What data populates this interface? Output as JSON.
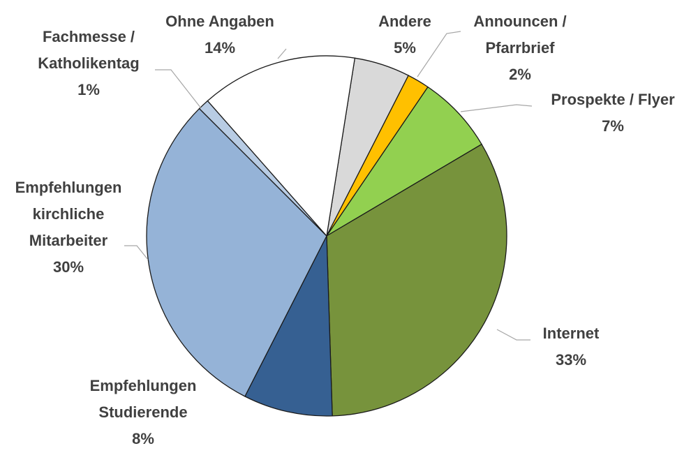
{
  "chart_data": {
    "type": "pie",
    "categories": [
      "Andere",
      "Announcen / Pfarrbrief",
      "Prospekte / Flyer",
      "Internet",
      "Empfehlungen Studierende",
      "Empfehlungen kirchliche Mitarbeiter",
      "Fachmesse / Katholikentag",
      "Ohne Angaben"
    ],
    "values": [
      5,
      2,
      7,
      33,
      8,
      30,
      1,
      14
    ],
    "value_labels": [
      "5%",
      "2%",
      "7%",
      "33%",
      "8%",
      "30%",
      "1%",
      "14%"
    ],
    "colors": [
      "#d9d9d9",
      "#ffc000",
      "#92d050",
      "#77933c",
      "#366092",
      "#95b3d7",
      "#b8cce4",
      "#ffffff"
    ]
  }
}
